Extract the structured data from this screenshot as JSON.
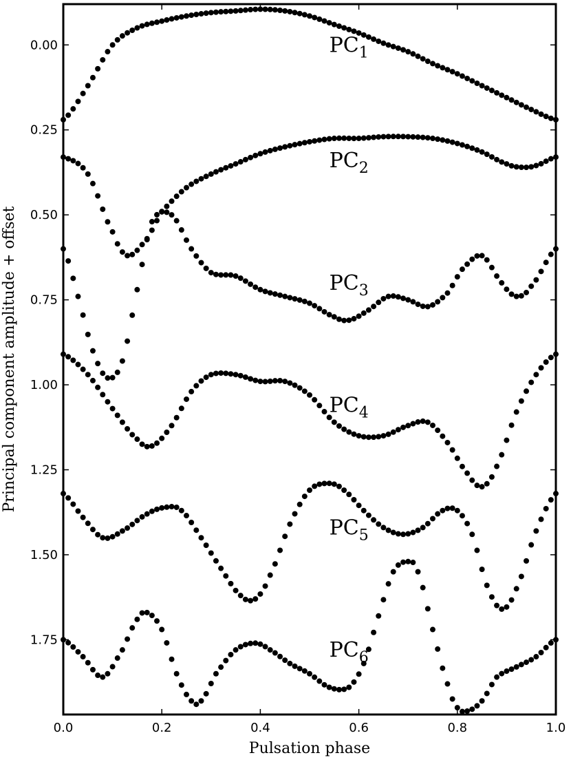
{
  "chart_data": {
    "type": "scatter",
    "xlabel": "Pulsation phase",
    "ylabel": "Principal component amplitude + offset",
    "xlim": [
      0.0,
      1.0
    ],
    "ylim": [
      1.97,
      -0.12
    ],
    "y_inverted": true,
    "x_ticks": [
      "0.0",
      "0.2",
      "0.4",
      "0.6",
      "0.8",
      "1.0"
    ],
    "x_tick_values": [
      0.0,
      0.2,
      0.4,
      0.6,
      0.8,
      1.0
    ],
    "y_ticks": [
      "0.00",
      "0.25",
      "0.50",
      "0.75",
      "1.00",
      "1.25",
      "1.50",
      "1.75"
    ],
    "y_tick_values": [
      0.0,
      0.25,
      0.5,
      0.75,
      1.0,
      1.25,
      1.5,
      1.75
    ],
    "grid": false,
    "marker_color": "#000000",
    "series": [
      {
        "label_base": "PC",
        "label_sub": "1",
        "label_at": [
          0.54,
          0.0
        ],
        "phase": [
          0.0,
          0.05,
          0.1,
          0.15,
          0.2,
          0.25,
          0.3,
          0.35,
          0.4,
          0.45,
          0.5,
          0.55,
          0.6,
          0.65,
          0.7,
          0.75,
          0.8,
          0.85,
          0.9,
          0.95,
          1.0
        ],
        "value": [
          0.22,
          0.12,
          0.0,
          -0.05,
          -0.07,
          -0.085,
          -0.095,
          -0.1,
          -0.105,
          -0.1,
          -0.085,
          -0.06,
          -0.035,
          -0.005,
          0.02,
          0.055,
          0.085,
          0.12,
          0.155,
          0.19,
          0.22
        ]
      },
      {
        "label_base": "PC",
        "label_sub": "2",
        "label_at": [
          0.54,
          0.34
        ],
        "phase": [
          0.0,
          0.05,
          0.1,
          0.13,
          0.17,
          0.2,
          0.25,
          0.3,
          0.35,
          0.4,
          0.45,
          0.5,
          0.55,
          0.6,
          0.65,
          0.7,
          0.75,
          0.8,
          0.85,
          0.9,
          0.93,
          0.96,
          1.0
        ],
        "value": [
          0.33,
          0.38,
          0.55,
          0.62,
          0.57,
          0.49,
          0.42,
          0.38,
          0.35,
          0.32,
          0.3,
          0.285,
          0.275,
          0.275,
          0.27,
          0.27,
          0.275,
          0.29,
          0.315,
          0.35,
          0.36,
          0.355,
          0.33
        ],
        "emphasize": true
      },
      {
        "label_base": "PC",
        "label_sub": "3",
        "label_at": [
          0.54,
          0.7
        ],
        "phase": [
          0.0,
          0.03,
          0.06,
          0.09,
          0.12,
          0.15,
          0.18,
          0.22,
          0.26,
          0.3,
          0.35,
          0.4,
          0.45,
          0.5,
          0.55,
          0.58,
          0.62,
          0.66,
          0.7,
          0.74,
          0.78,
          0.81,
          0.85,
          0.89,
          0.92,
          0.95,
          1.0
        ],
        "value": [
          0.6,
          0.74,
          0.9,
          0.98,
          0.93,
          0.72,
          0.52,
          0.5,
          0.6,
          0.67,
          0.68,
          0.72,
          0.74,
          0.76,
          0.8,
          0.81,
          0.78,
          0.74,
          0.75,
          0.77,
          0.73,
          0.66,
          0.62,
          0.7,
          0.74,
          0.71,
          0.6
        ]
      },
      {
        "label_base": "PC",
        "label_sub": "4",
        "label_at": [
          0.54,
          1.06
        ],
        "phase": [
          0.0,
          0.05,
          0.1,
          0.15,
          0.18,
          0.22,
          0.26,
          0.3,
          0.35,
          0.4,
          0.45,
          0.5,
          0.55,
          0.6,
          0.65,
          0.7,
          0.74,
          0.78,
          0.82,
          0.85,
          0.88,
          0.92,
          0.96,
          1.0
        ],
        "value": [
          0.91,
          0.97,
          1.07,
          1.16,
          1.18,
          1.12,
          1.02,
          0.97,
          0.97,
          0.99,
          0.99,
          1.03,
          1.11,
          1.15,
          1.15,
          1.12,
          1.11,
          1.17,
          1.26,
          1.3,
          1.24,
          1.08,
          0.97,
          0.91
        ]
      },
      {
        "label_base": "PC",
        "label_sub": "5",
        "label_at": [
          0.54,
          1.42
        ],
        "phase": [
          0.0,
          0.04,
          0.08,
          0.12,
          0.17,
          0.21,
          0.24,
          0.28,
          0.32,
          0.36,
          0.39,
          0.42,
          0.46,
          0.5,
          0.54,
          0.57,
          0.61,
          0.65,
          0.69,
          0.73,
          0.77,
          0.8,
          0.83,
          0.86,
          0.89,
          0.92,
          0.96,
          1.0
        ],
        "value": [
          1.32,
          1.39,
          1.45,
          1.43,
          1.38,
          1.36,
          1.37,
          1.45,
          1.54,
          1.62,
          1.63,
          1.56,
          1.41,
          1.31,
          1.29,
          1.31,
          1.37,
          1.42,
          1.44,
          1.42,
          1.37,
          1.37,
          1.44,
          1.59,
          1.66,
          1.6,
          1.43,
          1.32
        ]
      },
      {
        "label_base": "PC",
        "label_sub": "6",
        "label_at": [
          0.54,
          1.78
        ],
        "phase": [
          0.0,
          0.04,
          0.08,
          0.12,
          0.15,
          0.17,
          0.2,
          0.23,
          0.26,
          0.28,
          0.31,
          0.35,
          0.39,
          0.42,
          0.46,
          0.5,
          0.54,
          0.58,
          0.61,
          0.64,
          0.67,
          0.7,
          0.72,
          0.75,
          0.78,
          0.8,
          0.82,
          0.85,
          0.88,
          0.92,
          0.96,
          1.0
        ],
        "value": [
          1.75,
          1.8,
          1.86,
          1.78,
          1.69,
          1.67,
          1.72,
          1.85,
          1.93,
          1.93,
          1.85,
          1.78,
          1.76,
          1.78,
          1.82,
          1.85,
          1.89,
          1.89,
          1.82,
          1.68,
          1.55,
          1.52,
          1.55,
          1.72,
          1.88,
          1.95,
          1.96,
          1.93,
          1.86,
          1.83,
          1.8,
          1.75
        ]
      }
    ]
  }
}
